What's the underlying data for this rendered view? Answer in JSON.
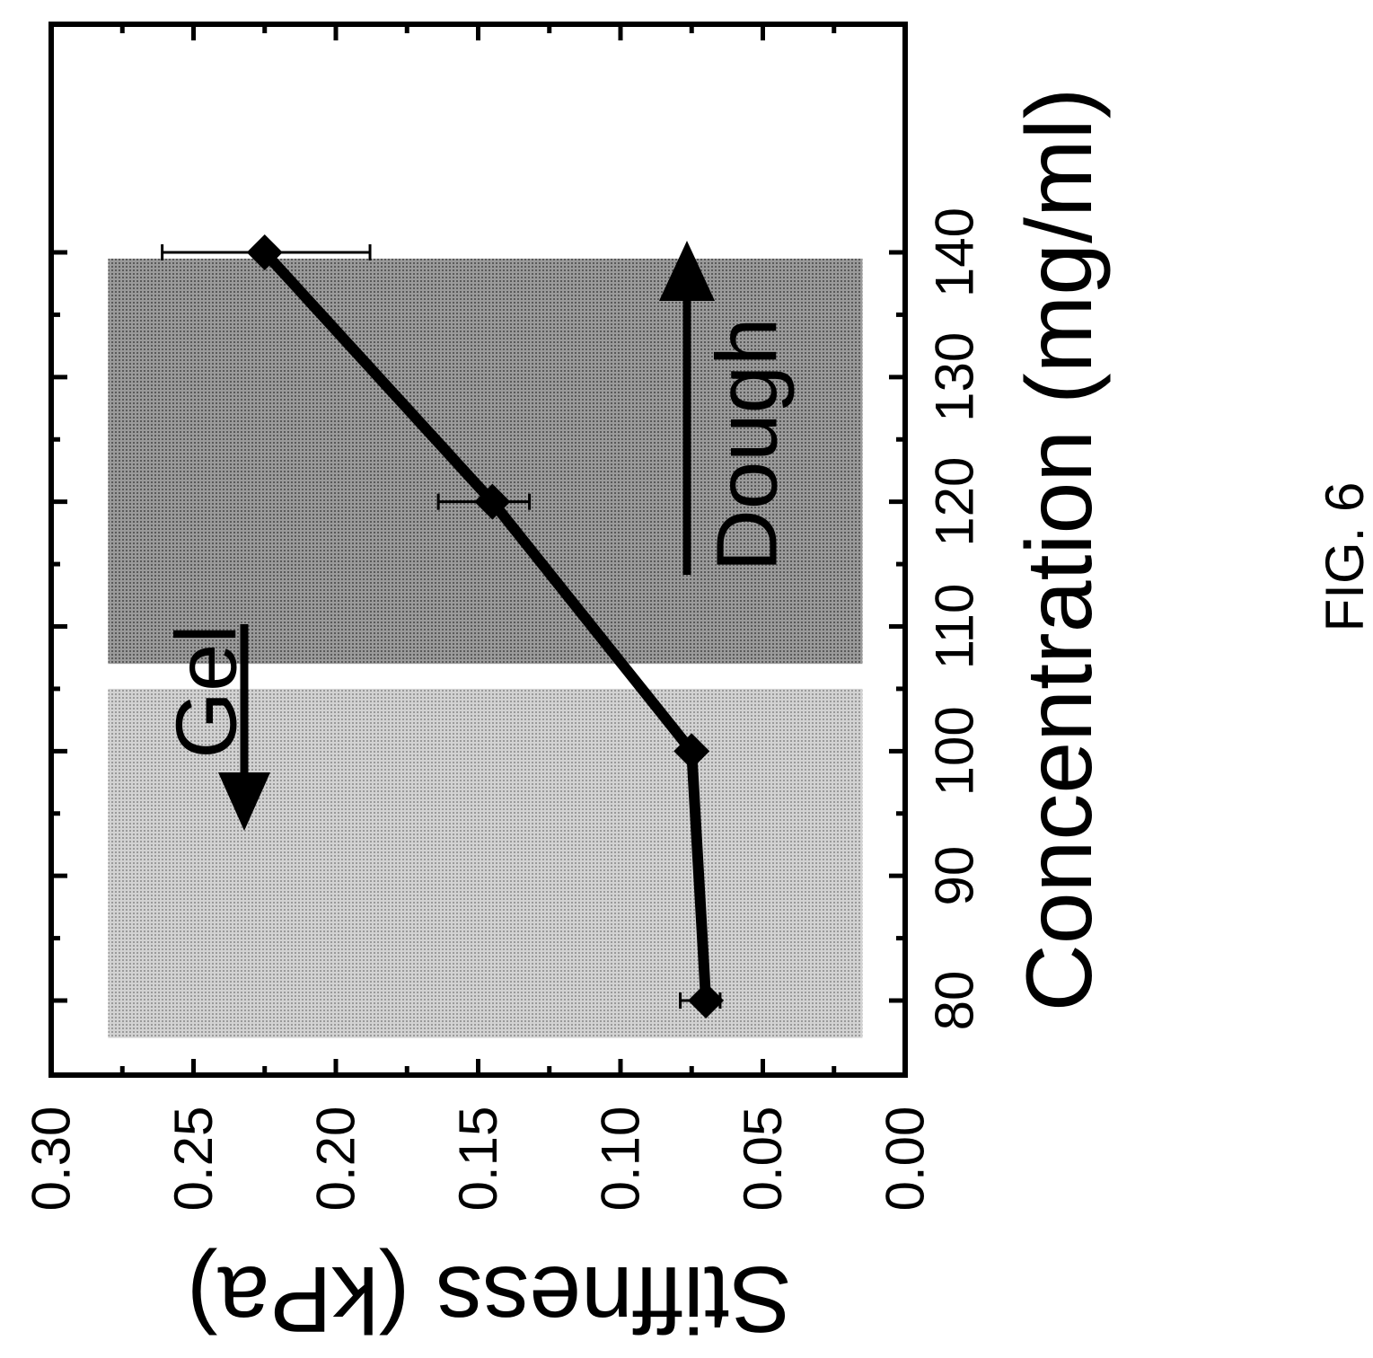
{
  "figure_label": "FIG. 6",
  "chart_data": {
    "type": "line",
    "orientation": "rotated 90° counter-clockwise",
    "xlabel": "Concentration (mg/ml)",
    "ylabel": "Stiffness (kPa)",
    "xlim": [
      76,
      144
    ],
    "ylim": [
      0.0,
      0.3
    ],
    "x_ticks": [
      "80",
      "90",
      "100",
      "110",
      "120",
      "130",
      "140"
    ],
    "y_ticks": [
      "0.00",
      "0.05",
      "0.10",
      "0.15",
      "0.20",
      "0.25",
      "0.30"
    ],
    "grid": false,
    "series": [
      {
        "marker": "diamond",
        "x": [
          80,
          100,
          120,
          140
        ],
        "y": [
          0.07,
          0.075,
          0.145,
          0.225
        ],
        "error_low": [
          0.005,
          0.003,
          0.013,
          0.037
        ],
        "error_high": [
          0.009,
          0.003,
          0.019,
          0.036
        ]
      }
    ],
    "regions": [
      {
        "label": "Gel",
        "x_range": [
          77,
          105
        ],
        "y_range": [
          0.015,
          0.28
        ],
        "shade": "#c9c9c9",
        "arrow": "down"
      },
      {
        "label": "Dough",
        "x_range": [
          107,
          139.5
        ],
        "y_range": [
          0.015,
          0.28
        ],
        "shade": "#8e8e8e",
        "arrow": "up"
      }
    ]
  }
}
